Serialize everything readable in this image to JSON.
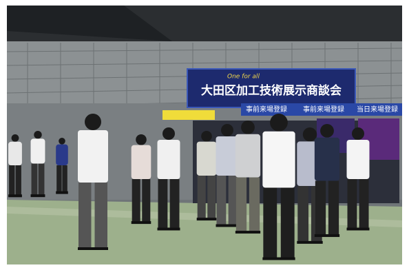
{
  "banner": {
    "tagline": "One for all",
    "title": "大田区加工技術展示商談会"
  },
  "signs": [
    "事前来場登録",
    "事前来場登録",
    "当日来場登録"
  ]
}
